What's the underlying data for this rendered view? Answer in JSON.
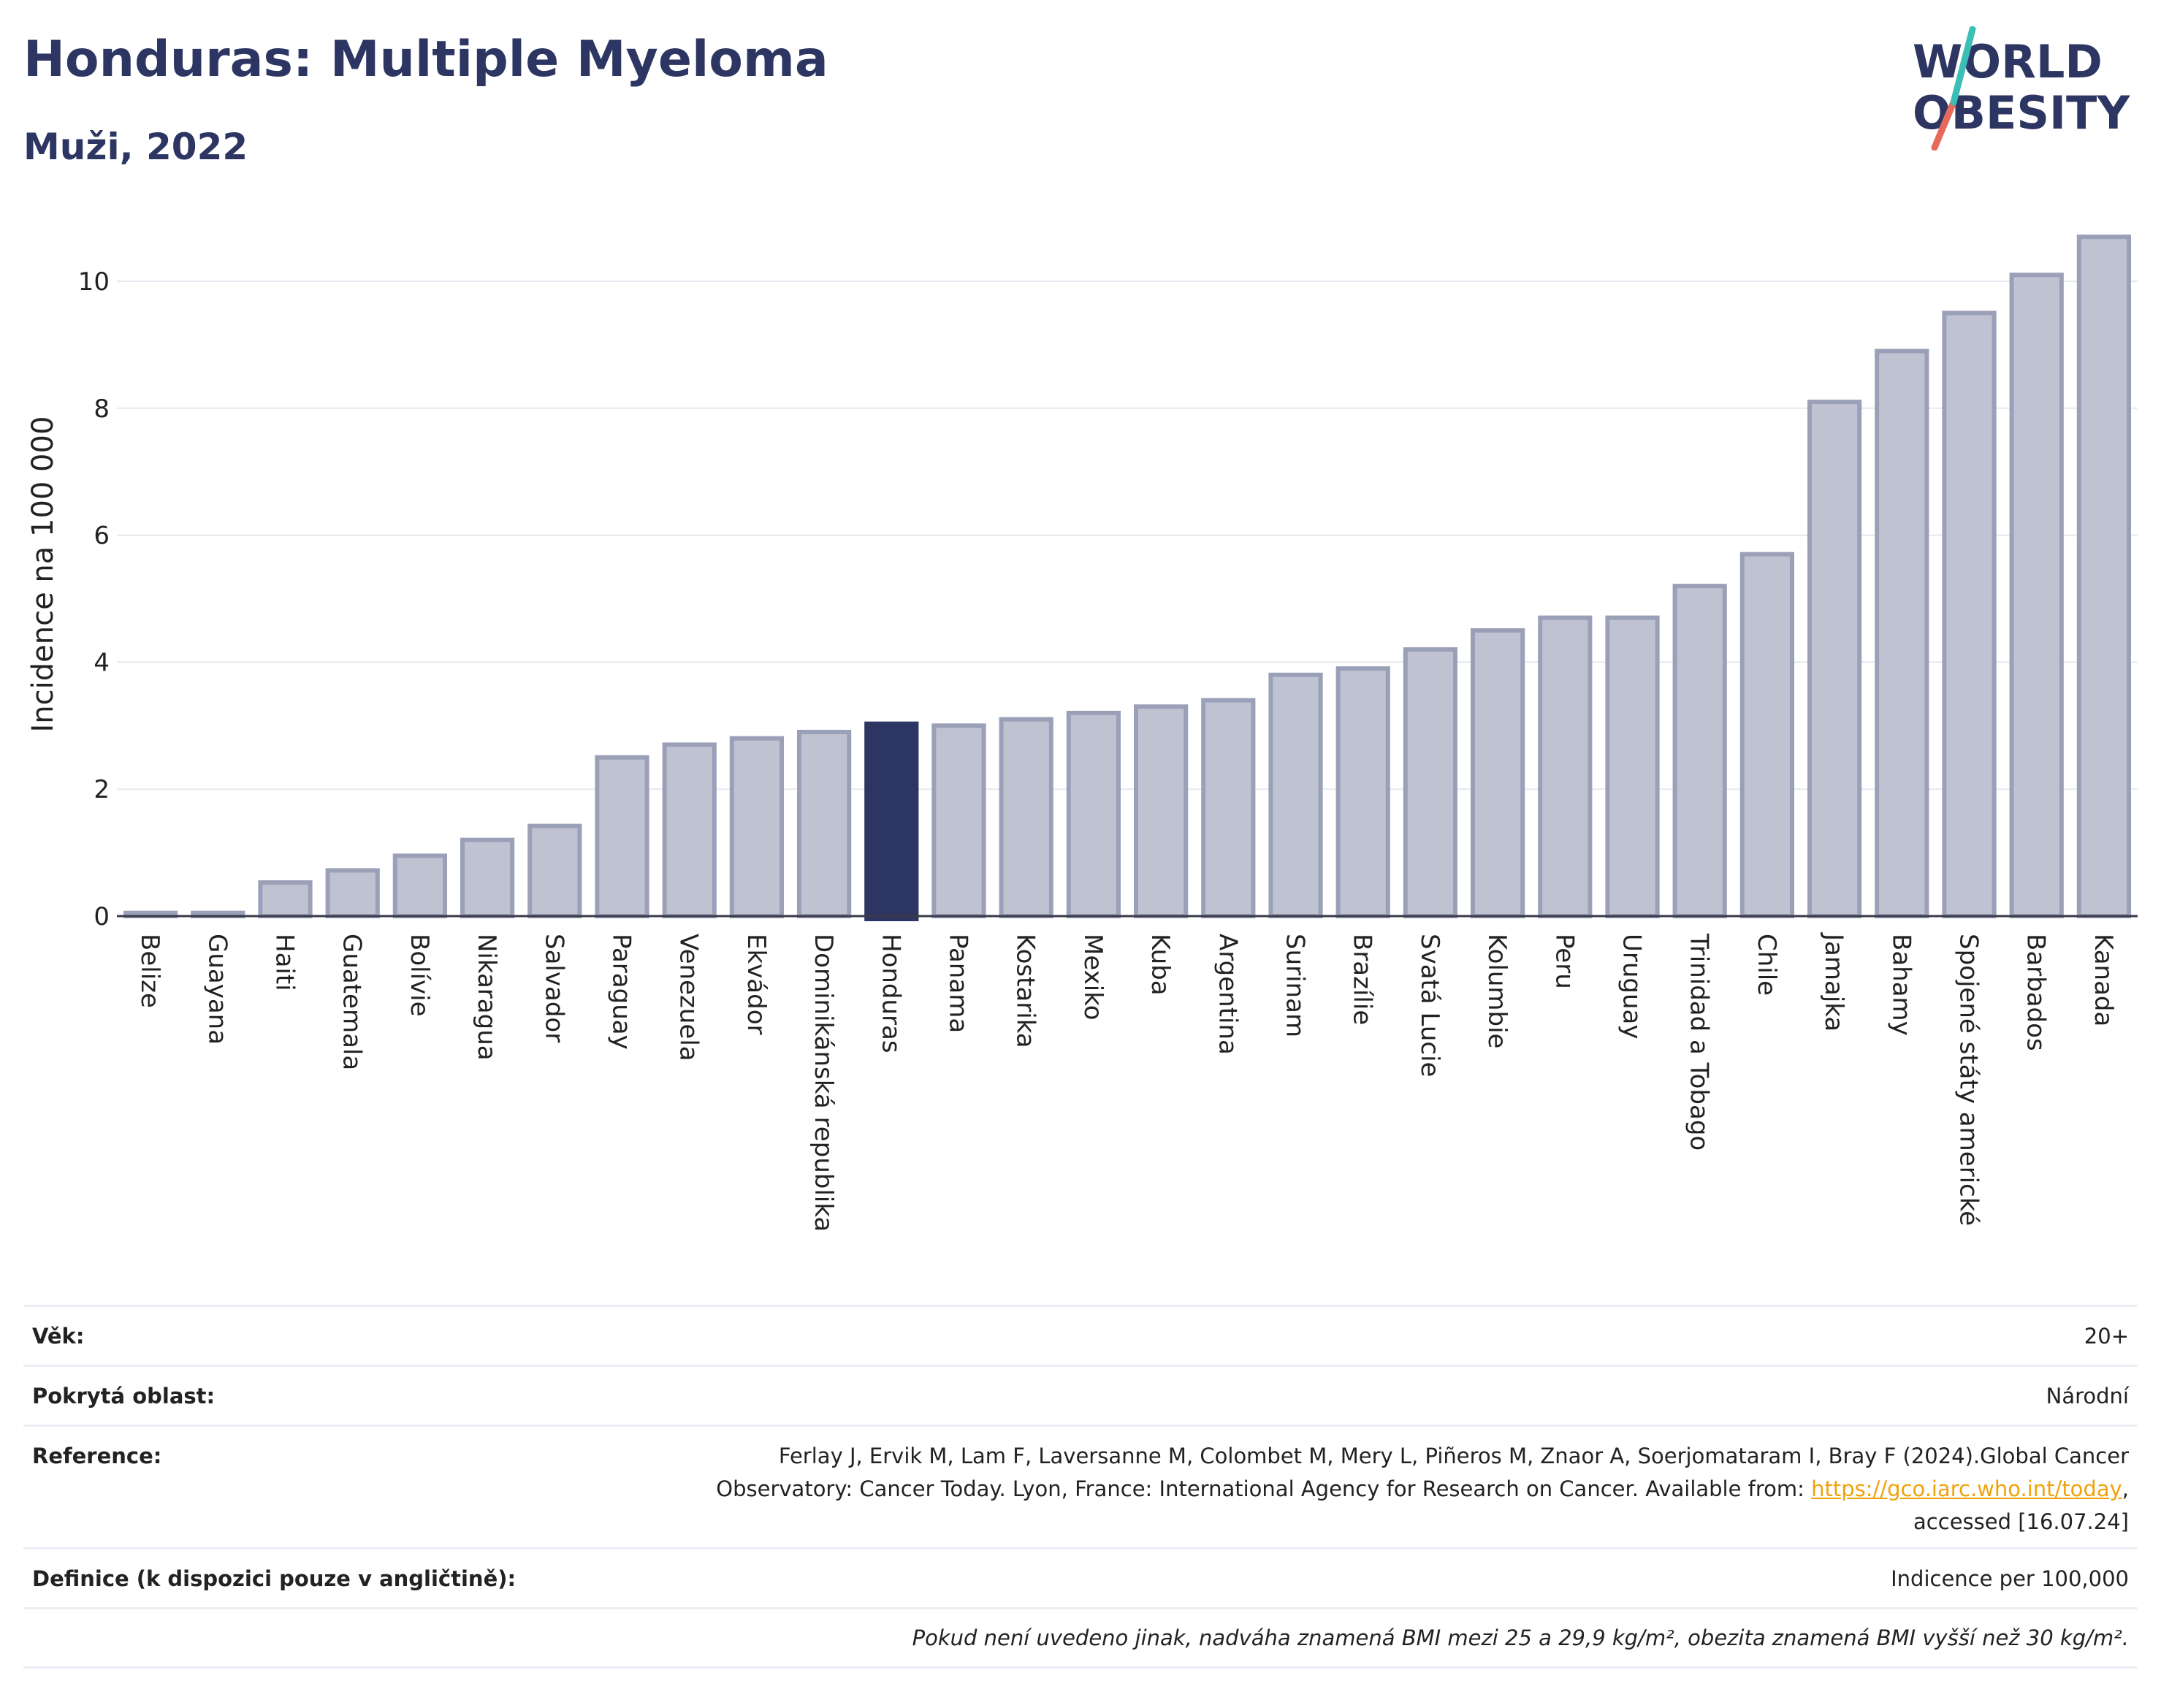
{
  "header": {
    "title": "Honduras: Multiple Myeloma",
    "subtitle": "Muži, 2022"
  },
  "logo": {
    "line1": "WORLD",
    "line2": "OBESITY"
  },
  "colors": {
    "bar": "#bfc3d1",
    "bar_border": "#9aa0b8",
    "highlight": "#2d3662",
    "title": "#2d3662",
    "link": "#f1a20b"
  },
  "chart_data": {
    "type": "bar",
    "ylabel": "Incidence na 100 000",
    "ylim": [
      0,
      11
    ],
    "yticks": [
      0,
      2,
      4,
      6,
      8,
      10
    ],
    "grid": true,
    "highlight": "Honduras",
    "categories": [
      "Belize",
      "Guayana",
      "Haiti",
      "Guatemala",
      "Bolívie",
      "Nikaragua",
      "Salvador",
      "Paraguay",
      "Venezuela",
      "Ekvádor",
      "Dominikánská republika",
      "Honduras",
      "Panama",
      "Kostarika",
      "Mexiko",
      "Kuba",
      "Argentina",
      "Surinam",
      "Brazílie",
      "Svatá Lucie",
      "Kolumbie",
      "Peru",
      "Uruguay",
      "Trinidad a Tobago",
      "Chile",
      "Jamajka",
      "Bahamy",
      "Spojené státy americké",
      "Barbados",
      "Kanada"
    ],
    "values": [
      0.05,
      0.05,
      0.53,
      0.72,
      0.95,
      1.2,
      1.42,
      2.5,
      2.7,
      2.8,
      2.9,
      3.03,
      3.0,
      3.1,
      3.2,
      3.3,
      3.4,
      3.8,
      3.9,
      4.2,
      4.5,
      4.7,
      4.7,
      5.2,
      5.7,
      8.1,
      8.9,
      9.5,
      10.1,
      10.7
    ]
  },
  "info": {
    "age_label": "Věk:",
    "age_value": "20+",
    "coverage_label": "Pokrytá oblast:",
    "coverage_value": "Národní",
    "reference_label": "Reference:",
    "reference_line1": "Ferlay J, Ervik M, Lam F, Laversanne M, Colombet M, Mery L, Piñeros M, Znaor A, Soerjomataram I, Bray F (2024).Global Cancer",
    "reference_line2_pre": "Observatory: Cancer Today. Lyon, France: International Agency for Research on Cancer. Available from: ",
    "reference_link": "https://gco.iarc.who.int/today",
    "reference_line2_post": ",",
    "reference_line3": "accessed [16.07.24]",
    "definition_label": "Definice (k dispozici pouze v angličtině):",
    "definition_value": "Indicence per 100,000",
    "footnote": "Pokud není uvedeno jinak, nadváha znamená BMI mezi 25 a 29,9 kg/m², obezita znamená BMI vyšší než 30 kg/m²."
  }
}
